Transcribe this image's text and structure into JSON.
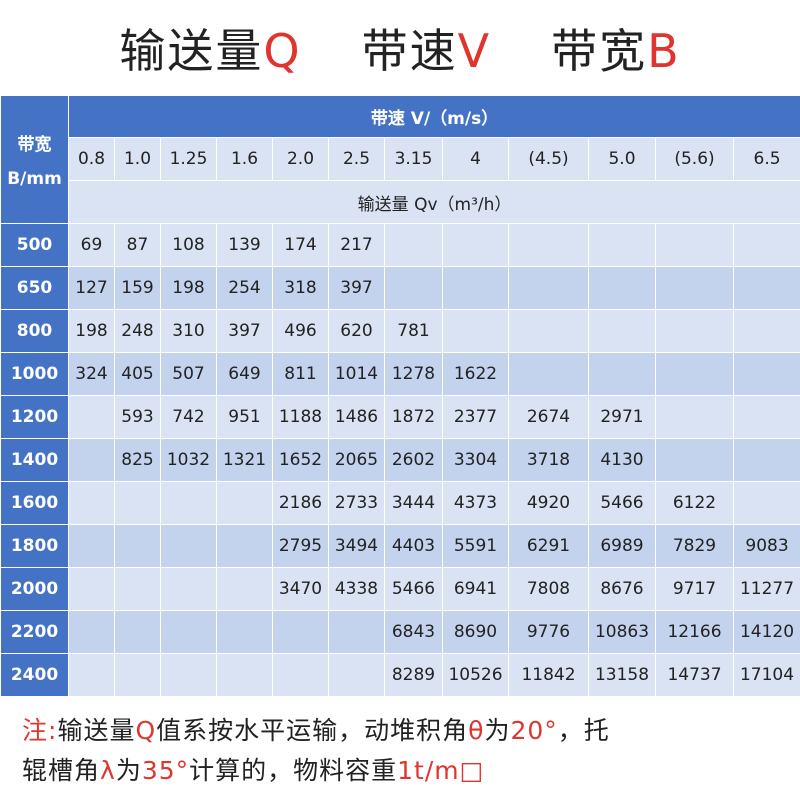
{
  "title": {
    "segments": [
      {
        "text": "输送量",
        "color": "#222222"
      },
      {
        "text": "Q",
        "color": "#e0342f"
      },
      {
        "text": "带速",
        "color": "#222222"
      },
      {
        "text": "V",
        "color": "#e0342f"
      },
      {
        "text": "带宽",
        "color": "#222222"
      },
      {
        "text": "B",
        "color": "#e0342f"
      }
    ]
  },
  "table": {
    "corner_top": "带宽",
    "corner_bottom": "B/mm",
    "speed_header": "带速 V/（m/s）",
    "flow_header": "输送量 Qv（m³/h）",
    "speeds": [
      "0.8",
      "1.0",
      "1.25",
      "1.6",
      "2.0",
      "2.5",
      "3.15",
      "4",
      "(4.5)",
      "5.0",
      "(5.6)",
      "6.5"
    ],
    "rows": [
      {
        "width": 500,
        "values": [
          69,
          87,
          108,
          139,
          174,
          217,
          null,
          null,
          null,
          null,
          null,
          null
        ]
      },
      {
        "width": 650,
        "values": [
          127,
          159,
          198,
          254,
          318,
          397,
          null,
          null,
          null,
          null,
          null,
          null
        ]
      },
      {
        "width": 800,
        "values": [
          198,
          248,
          310,
          397,
          496,
          620,
          781,
          null,
          null,
          null,
          null,
          null
        ]
      },
      {
        "width": 1000,
        "values": [
          324,
          405,
          507,
          649,
          811,
          1014,
          1278,
          1622,
          null,
          null,
          null,
          null
        ]
      },
      {
        "width": 1200,
        "values": [
          null,
          593,
          742,
          951,
          1188,
          1486,
          1872,
          2377,
          2674,
          2971,
          null,
          null
        ]
      },
      {
        "width": 1400,
        "values": [
          null,
          825,
          1032,
          1321,
          1652,
          2065,
          2602,
          3304,
          3718,
          4130,
          null,
          null
        ]
      },
      {
        "width": 1600,
        "values": [
          null,
          null,
          null,
          null,
          2186,
          2733,
          3444,
          4373,
          4920,
          5466,
          6122,
          null
        ]
      },
      {
        "width": 1800,
        "values": [
          null,
          null,
          null,
          null,
          2795,
          3494,
          4403,
          5591,
          6291,
          6989,
          7829,
          9083
        ]
      },
      {
        "width": 2000,
        "values": [
          null,
          null,
          null,
          null,
          3470,
          4338,
          5466,
          6941,
          7808,
          8676,
          9717,
          11277
        ]
      },
      {
        "width": 2200,
        "values": [
          null,
          null,
          null,
          null,
          null,
          null,
          6843,
          8690,
          9776,
          10863,
          12166,
          14120
        ]
      },
      {
        "width": 2400,
        "values": [
          null,
          null,
          null,
          null,
          null,
          null,
          8289,
          10526,
          11842,
          13158,
          14737,
          17104
        ]
      }
    ]
  },
  "note": {
    "lines": [
      [
        {
          "text": "注:",
          "color": "#e0342f"
        },
        {
          "text": "输送量",
          "color": "#222222"
        },
        {
          "text": "Q",
          "color": "#e0342f"
        },
        {
          "text": "值系按水平运输，动堆积角",
          "color": "#222222"
        },
        {
          "text": "θ",
          "color": "#e0342f"
        },
        {
          "text": "为",
          "color": "#222222"
        },
        {
          "text": "20°",
          "color": "#e0342f"
        },
        {
          "text": "，托",
          "color": "#222222"
        }
      ],
      [
        {
          "text": "辊槽角",
          "color": "#222222"
        },
        {
          "text": "λ",
          "color": "#e0342f"
        },
        {
          "text": "为",
          "color": "#222222"
        },
        {
          "text": "35°",
          "color": "#e0342f"
        },
        {
          "text": "计算的，物料容重",
          "color": "#222222"
        },
        {
          "text": "1t/m□",
          "color": "#e0342f"
        }
      ]
    ]
  }
}
